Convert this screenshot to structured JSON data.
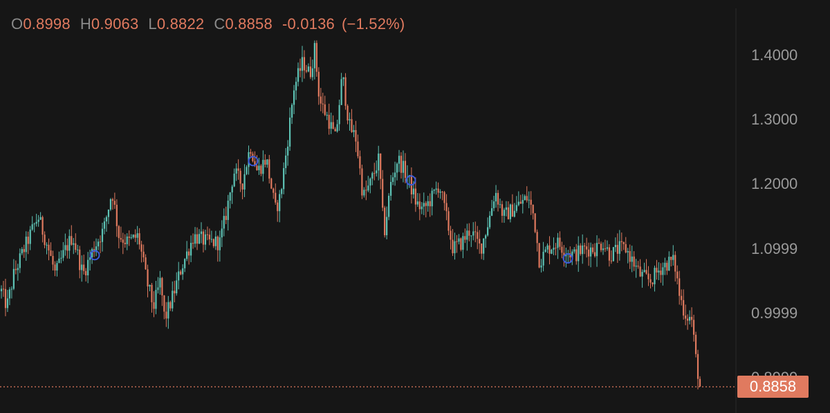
{
  "header": {
    "o_label": "O",
    "o_value": "0.8998",
    "h_label": "H",
    "h_value": "0.9063",
    "l_label": "L",
    "l_value": "0.8822",
    "c_label": "C",
    "c_value": "0.8858",
    "change": "-0.0136",
    "change_pct": "(−1.52%)"
  },
  "last_price_label": "0.8858",
  "colors": {
    "background": "#161616",
    "up": "#5ec4b6",
    "down": "#e07a5f",
    "marker": "#3b5bdb",
    "axis_text": "#9a9a9a",
    "divider": "#2a2a2a"
  },
  "chart_data": {
    "type": "candlestick",
    "y_axis_ticks": [
      "1.4000",
      "1.3000",
      "1.2000",
      "1.0999",
      "0.9999",
      "0.8999"
    ],
    "y_axis_position": "right",
    "ylim": [
      0.86,
      1.43
    ],
    "grid": false,
    "last_price": 0.8858,
    "bar_count": 340,
    "price_path": [
      [
        0,
        1.04
      ],
      [
        10,
        1.01
      ],
      [
        20,
        1.06
      ],
      [
        35,
        1.1
      ],
      [
        55,
        1.15
      ],
      [
        70,
        1.1
      ],
      [
        80,
        1.06
      ],
      [
        95,
        1.1
      ],
      [
        105,
        1.12
      ],
      [
        120,
        1.06
      ],
      [
        135,
        1.1
      ],
      [
        150,
        1.13
      ],
      [
        162,
        1.19
      ],
      [
        172,
        1.12
      ],
      [
        185,
        1.11
      ],
      [
        200,
        1.12
      ],
      [
        212,
        1.05
      ],
      [
        222,
        1.01
      ],
      [
        232,
        1.05
      ],
      [
        238,
        0.99
      ],
      [
        248,
        1.02
      ],
      [
        262,
        1.07
      ],
      [
        280,
        1.12
      ],
      [
        300,
        1.11
      ],
      [
        318,
        1.11
      ],
      [
        328,
        1.16
      ],
      [
        338,
        1.22
      ],
      [
        350,
        1.2
      ],
      [
        362,
        1.26
      ],
      [
        372,
        1.22
      ],
      [
        385,
        1.24
      ],
      [
        398,
        1.16
      ],
      [
        405,
        1.18
      ],
      [
        415,
        1.26
      ],
      [
        425,
        1.35
      ],
      [
        438,
        1.39
      ],
      [
        448,
        1.37
      ],
      [
        455,
        1.41
      ],
      [
        462,
        1.33
      ],
      [
        475,
        1.3
      ],
      [
        485,
        1.27
      ],
      [
        495,
        1.37
      ],
      [
        505,
        1.29
      ],
      [
        515,
        1.27
      ],
      [
        525,
        1.18
      ],
      [
        535,
        1.2
      ],
      [
        548,
        1.24
      ],
      [
        555,
        1.12
      ],
      [
        565,
        1.2
      ],
      [
        575,
        1.24
      ],
      [
        590,
        1.21
      ],
      [
        602,
        1.17
      ],
      [
        612,
        1.16
      ],
      [
        625,
        1.18
      ],
      [
        635,
        1.2
      ],
      [
        645,
        1.15
      ],
      [
        655,
        1.1
      ],
      [
        668,
        1.11
      ],
      [
        680,
        1.13
      ],
      [
        695,
        1.1
      ],
      [
        708,
        1.15
      ],
      [
        716,
        1.19
      ],
      [
        728,
        1.15
      ],
      [
        740,
        1.16
      ],
      [
        752,
        1.17
      ],
      [
        763,
        1.18
      ],
      [
        772,
        1.15
      ],
      [
        780,
        1.08
      ],
      [
        792,
        1.1
      ],
      [
        805,
        1.11
      ],
      [
        815,
        1.1
      ],
      [
        830,
        1.09
      ],
      [
        845,
        1.1
      ],
      [
        860,
        1.1
      ],
      [
        872,
        1.11
      ],
      [
        882,
        1.09
      ],
      [
        895,
        1.1
      ],
      [
        905,
        1.1
      ],
      [
        915,
        1.08
      ],
      [
        925,
        1.06
      ],
      [
        940,
        1.05
      ],
      [
        955,
        1.07
      ],
      [
        968,
        1.08
      ],
      [
        975,
        1.08
      ],
      [
        982,
        1.03
      ],
      [
        990,
        1.0
      ],
      [
        1000,
        0.99
      ],
      [
        1006,
        0.93
      ],
      [
        1012,
        0.886
      ]
    ],
    "signals": [
      {
        "bar_x": 137,
        "price": 1.09
      },
      {
        "bar_x": 366,
        "price": 1.236
      },
      {
        "bar_x": 594,
        "price": 1.206
      },
      {
        "bar_x": 821,
        "price": 1.085
      }
    ]
  }
}
